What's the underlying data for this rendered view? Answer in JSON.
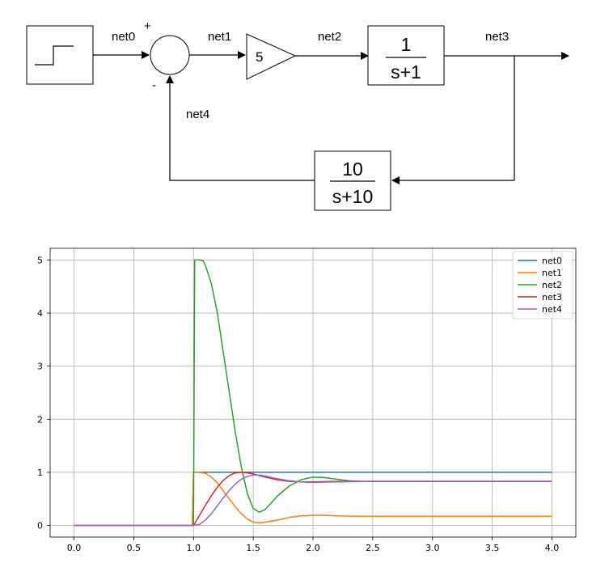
{
  "diagram": {
    "gain": "5",
    "forward_block": {
      "numerator": "1",
      "denominator": "s+1"
    },
    "feedback_block": {
      "numerator": "10",
      "denominator": "s+10"
    },
    "summer_signs": {
      "plus": "+",
      "minus": "-"
    },
    "nets": {
      "net0": "net0",
      "net1": "net1",
      "net2": "net2",
      "net3": "net3",
      "net4": "net4"
    }
  },
  "chart_data": {
    "type": "line",
    "xlim": [
      -0.2,
      4.2
    ],
    "ylim": [
      -0.22,
      5.22
    ],
    "xticks": [
      0.0,
      0.5,
      1.0,
      1.5,
      2.0,
      2.5,
      3.0,
      3.5,
      4.0
    ],
    "xtick_labels": [
      "0.0",
      "0.5",
      "1.0",
      "1.5",
      "2.0",
      "2.5",
      "3.0",
      "3.5",
      "4.0"
    ],
    "yticks": [
      0,
      1,
      2,
      3,
      4,
      5
    ],
    "ytick_labels": [
      "0",
      "1",
      "2",
      "3",
      "4",
      "5"
    ],
    "grid": true,
    "legend_position": "top-right",
    "series": [
      {
        "name": "net0",
        "color": "#1f77b4",
        "x": [
          0.0,
          0.99,
          1.0,
          4.0
        ],
        "y": [
          0,
          0,
          1.0,
          1.0
        ]
      },
      {
        "name": "net1",
        "color": "#ff7f0e",
        "x": [
          0.0,
          0.99,
          1.0,
          1.05,
          1.1,
          1.15,
          1.2,
          1.25,
          1.3,
          1.35,
          1.4,
          1.45,
          1.5,
          1.55,
          1.6,
          1.7,
          1.8,
          1.9,
          2.0,
          2.1,
          2.2,
          2.4,
          2.6,
          3.0,
          3.5,
          4.0
        ],
        "y": [
          0,
          0,
          1.0,
          1.0,
          0.98,
          0.91,
          0.8,
          0.65,
          0.5,
          0.35,
          0.22,
          0.12,
          0.06,
          0.05,
          0.06,
          0.1,
          0.15,
          0.18,
          0.19,
          0.19,
          0.18,
          0.17,
          0.17,
          0.17,
          0.17,
          0.17
        ]
      },
      {
        "name": "net2",
        "color": "#2ca02c",
        "x": [
          0.0,
          0.99,
          1.0,
          1.01,
          1.05,
          1.08,
          1.1,
          1.15,
          1.2,
          1.25,
          1.3,
          1.35,
          1.4,
          1.45,
          1.5,
          1.55,
          1.6,
          1.65,
          1.7,
          1.8,
          1.9,
          2.0,
          2.1,
          2.2,
          2.3,
          2.4,
          2.5,
          2.6,
          2.8,
          3.0,
          3.5,
          4.0
        ],
        "y": [
          0,
          0,
          0,
          5.0,
          5.0,
          4.98,
          4.9,
          4.55,
          4.0,
          3.25,
          2.5,
          1.75,
          1.1,
          0.6,
          0.32,
          0.25,
          0.3,
          0.42,
          0.55,
          0.74,
          0.86,
          0.91,
          0.9,
          0.87,
          0.84,
          0.83,
          0.83,
          0.83,
          0.83,
          0.83,
          0.83,
          0.83
        ]
      },
      {
        "name": "net3",
        "color": "#d62728",
        "x": [
          0.0,
          0.99,
          1.0,
          1.05,
          1.1,
          1.15,
          1.2,
          1.25,
          1.3,
          1.35,
          1.4,
          1.45,
          1.5,
          1.55,
          1.6,
          1.7,
          1.8,
          1.9,
          2.0,
          2.2,
          2.5,
          3.0,
          3.5,
          4.0
        ],
        "y": [
          0,
          0,
          0,
          0.19,
          0.38,
          0.56,
          0.72,
          0.85,
          0.94,
          0.99,
          1.0,
          0.99,
          0.97,
          0.94,
          0.91,
          0.86,
          0.83,
          0.82,
          0.82,
          0.83,
          0.83,
          0.83,
          0.83,
          0.83
        ]
      },
      {
        "name": "net4",
        "color": "#9467bd",
        "x": [
          0.0,
          1.0,
          1.05,
          1.1,
          1.15,
          1.2,
          1.25,
          1.3,
          1.35,
          1.4,
          1.45,
          1.5,
          1.55,
          1.6,
          1.7,
          1.8,
          1.9,
          2.0,
          2.2,
          2.5,
          3.0,
          3.5,
          4.0
        ],
        "y": [
          0,
          0,
          0.02,
          0.1,
          0.22,
          0.37,
          0.52,
          0.66,
          0.78,
          0.87,
          0.92,
          0.95,
          0.95,
          0.93,
          0.88,
          0.84,
          0.82,
          0.81,
          0.82,
          0.83,
          0.83,
          0.83,
          0.83
        ]
      }
    ]
  }
}
